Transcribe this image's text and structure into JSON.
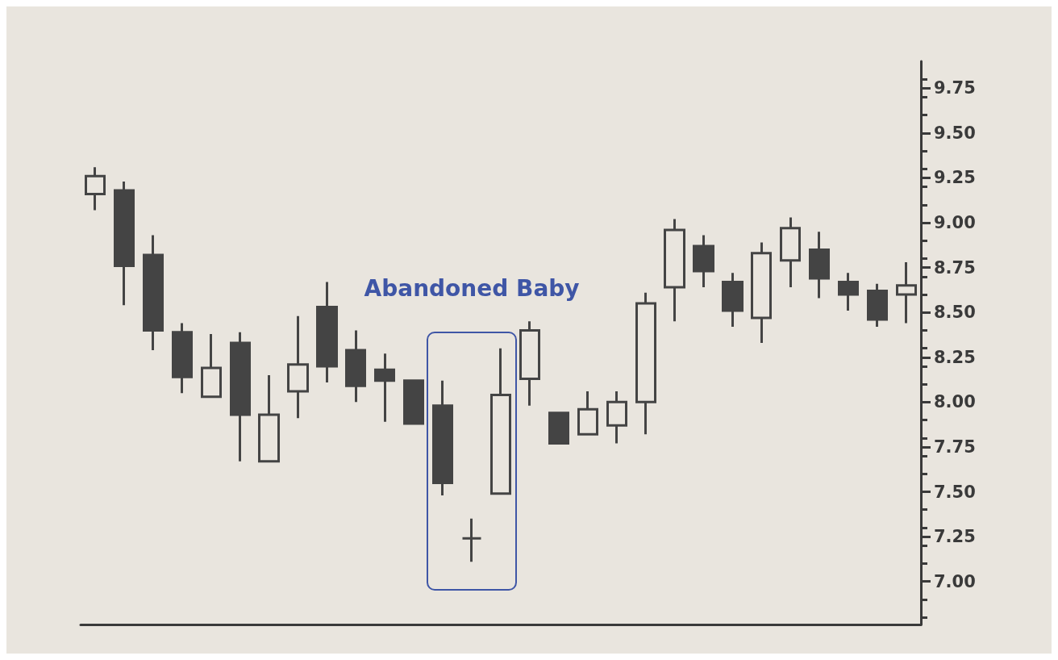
{
  "chart_data": {
    "type": "candlestick",
    "annotations": [
      "Abandoned Baby"
    ],
    "categories": [
      null,
      null,
      null,
      null,
      null,
      null,
      null,
      null,
      null,
      null,
      null,
      null,
      null,
      null,
      null,
      null,
      null,
      null,
      null,
      null,
      null,
      null,
      null,
      null,
      null,
      null,
      null,
      null,
      null
    ],
    "ohlc": [
      [
        9.16,
        9.31,
        9.07,
        9.26
      ],
      [
        9.18,
        9.23,
        8.54,
        8.76
      ],
      [
        8.82,
        8.93,
        8.29,
        8.4
      ],
      [
        8.39,
        8.44,
        8.05,
        8.14
      ],
      [
        8.03,
        8.38,
        8.03,
        8.19
      ],
      [
        8.33,
        8.39,
        7.67,
        7.93
      ],
      [
        7.67,
        8.15,
        7.67,
        7.93
      ],
      [
        8.06,
        8.48,
        7.91,
        8.21
      ],
      [
        8.53,
        8.67,
        8.11,
        8.2
      ],
      [
        8.29,
        8.4,
        8.0,
        8.09
      ],
      [
        8.18,
        8.27,
        7.89,
        8.12
      ],
      [
        8.12,
        8.12,
        7.88,
        7.88
      ],
      [
        7.98,
        8.12,
        7.48,
        7.55
      ],
      [
        7.24,
        7.35,
        7.11,
        7.24
      ],
      [
        7.49,
        8.3,
        7.49,
        8.04
      ],
      [
        8.13,
        8.45,
        7.98,
        8.4
      ],
      [
        7.94,
        7.94,
        7.77,
        7.77
      ],
      [
        7.82,
        8.06,
        7.82,
        7.96
      ],
      [
        7.87,
        8.06,
        7.77,
        8.0
      ],
      [
        8.0,
        8.61,
        7.82,
        8.55
      ],
      [
        8.64,
        9.02,
        8.45,
        8.96
      ],
      [
        8.87,
        8.93,
        8.64,
        8.73
      ],
      [
        8.67,
        8.72,
        8.42,
        8.51
      ],
      [
        8.47,
        8.89,
        8.33,
        8.83
      ],
      [
        8.79,
        9.03,
        8.64,
        8.97
      ],
      [
        8.85,
        8.95,
        8.58,
        8.69
      ],
      [
        8.67,
        8.72,
        8.51,
        8.6
      ],
      [
        8.62,
        8.66,
        8.42,
        8.46
      ],
      [
        8.6,
        8.78,
        8.44,
        8.65
      ]
    ],
    "color": "#444444",
    "ylim": [
      6.76,
      9.9
    ],
    "yticks": [
      {
        "value": 7,
        "label": "7.00"
      },
      {
        "value": 7.25,
        "label": "7.25"
      },
      {
        "value": 7.5,
        "label": "7.50"
      },
      {
        "value": 7.75,
        "label": "7.75"
      },
      {
        "value": 8,
        "label": "8.00"
      },
      {
        "value": 8.25,
        "label": "8.25"
      },
      {
        "value": 8.5,
        "label": "8.50"
      },
      {
        "value": 8.75,
        "label": "8.75"
      },
      {
        "value": 9,
        "label": "9.00"
      },
      {
        "value": 9.25,
        "label": "9.25"
      },
      {
        "value": 9.5,
        "label": "9.50"
      },
      {
        "value": 9.75,
        "label": "9.75"
      }
    ],
    "tick_labels": "y"
  }
}
